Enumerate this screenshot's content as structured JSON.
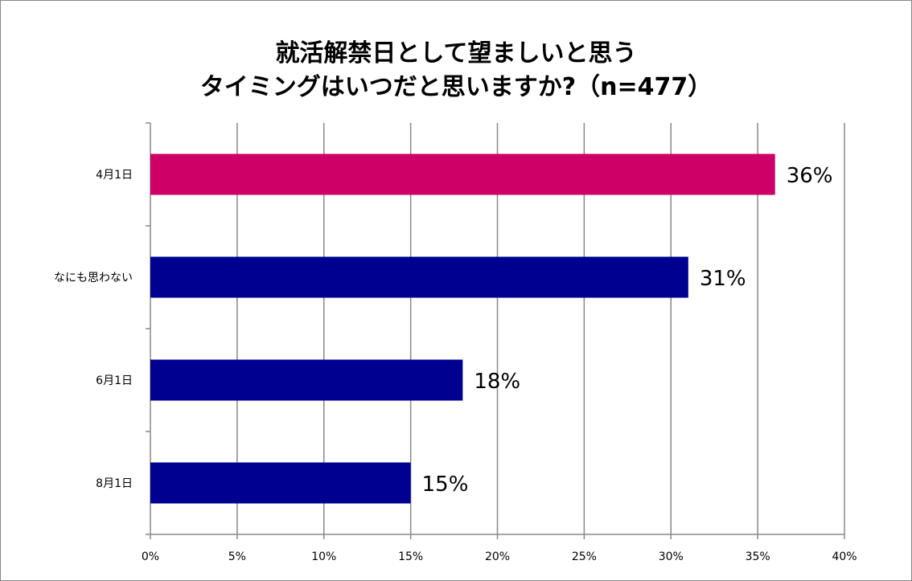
{
  "chart_data": {
    "type": "bar",
    "orientation": "horizontal",
    "title": [
      "就活解禁日として望ましいと思う",
      "タイミングはいつだと思いますか?（n=477）"
    ],
    "categories": [
      "4月1日",
      "なにも思わない",
      "6月1日",
      "8月1日"
    ],
    "values": [
      36,
      31,
      18,
      15
    ],
    "data_labels": [
      "36%",
      "31%",
      "18%",
      "15%"
    ],
    "colors": [
      "#CC0066",
      "#000090",
      "#000090",
      "#000090"
    ],
    "xlim": [
      0,
      40
    ],
    "xticks": [
      0,
      5,
      10,
      15,
      20,
      25,
      30,
      35,
      40
    ],
    "xtick_labels": [
      "0%",
      "5%",
      "10%",
      "15%",
      "20%",
      "25%",
      "30%",
      "35%",
      "40%"
    ],
    "xlabel": "",
    "ylabel": "",
    "grid": "vertical",
    "legend": "none"
  }
}
